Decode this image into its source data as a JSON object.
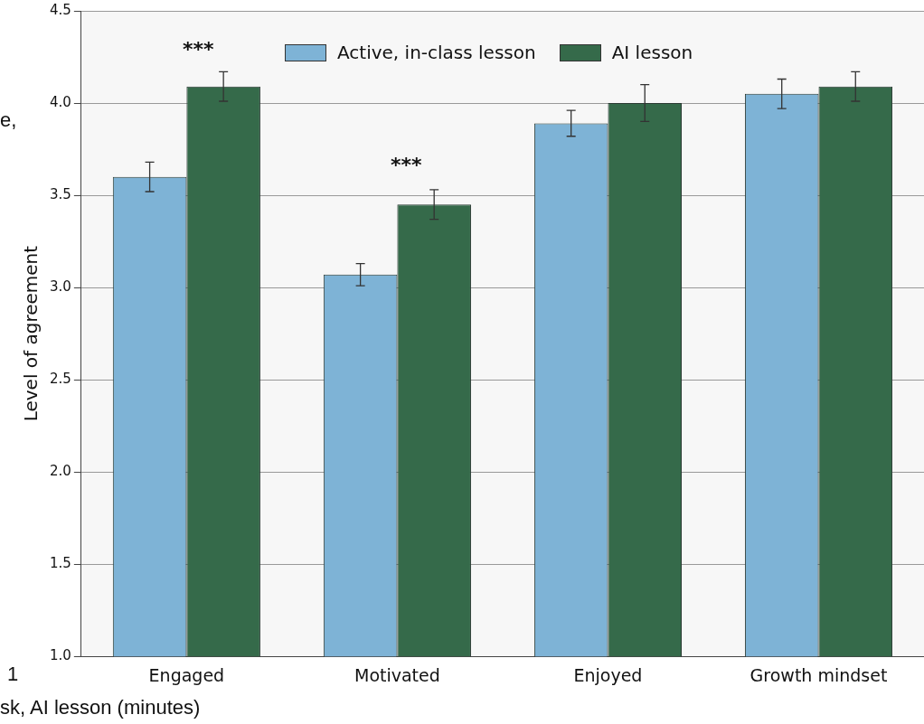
{
  "chart_data": {
    "type": "bar",
    "ylabel": "Level of agreement",
    "categories": [
      "Engaged",
      "Motivated",
      "Enjoyed",
      "Growth mindset"
    ],
    "series": [
      {
        "name": "Active, in-class lesson",
        "color": "#7eb3d6",
        "values": [
          3.6,
          3.07,
          3.89,
          4.05
        ],
        "errors": [
          0.08,
          0.06,
          0.07,
          0.08
        ]
      },
      {
        "name": "AI lesson",
        "color": "#356a4a",
        "values": [
          4.09,
          3.45,
          4.0,
          4.09
        ],
        "errors": [
          0.08,
          0.08,
          0.1,
          0.08
        ]
      }
    ],
    "ylim": [
      1.0,
      4.5
    ],
    "yticks": [
      {
        "value": 1,
        "label": "1.0"
      },
      {
        "value": 1.5,
        "label": "1.5"
      },
      {
        "value": 2,
        "label": "2.0"
      },
      {
        "value": 2.5,
        "label": "2.5"
      },
      {
        "value": 3,
        "label": "3.0"
      },
      {
        "value": 3.5,
        "label": "3.5"
      },
      {
        "value": 4,
        "label": "4.0"
      },
      {
        "value": 4.5,
        "label": "4.5"
      }
    ],
    "grid": "y",
    "legend": "top",
    "annotations": [
      "***",
      "***",
      "e,",
      "1",
      "sk, AI lesson (minutes)"
    ]
  }
}
